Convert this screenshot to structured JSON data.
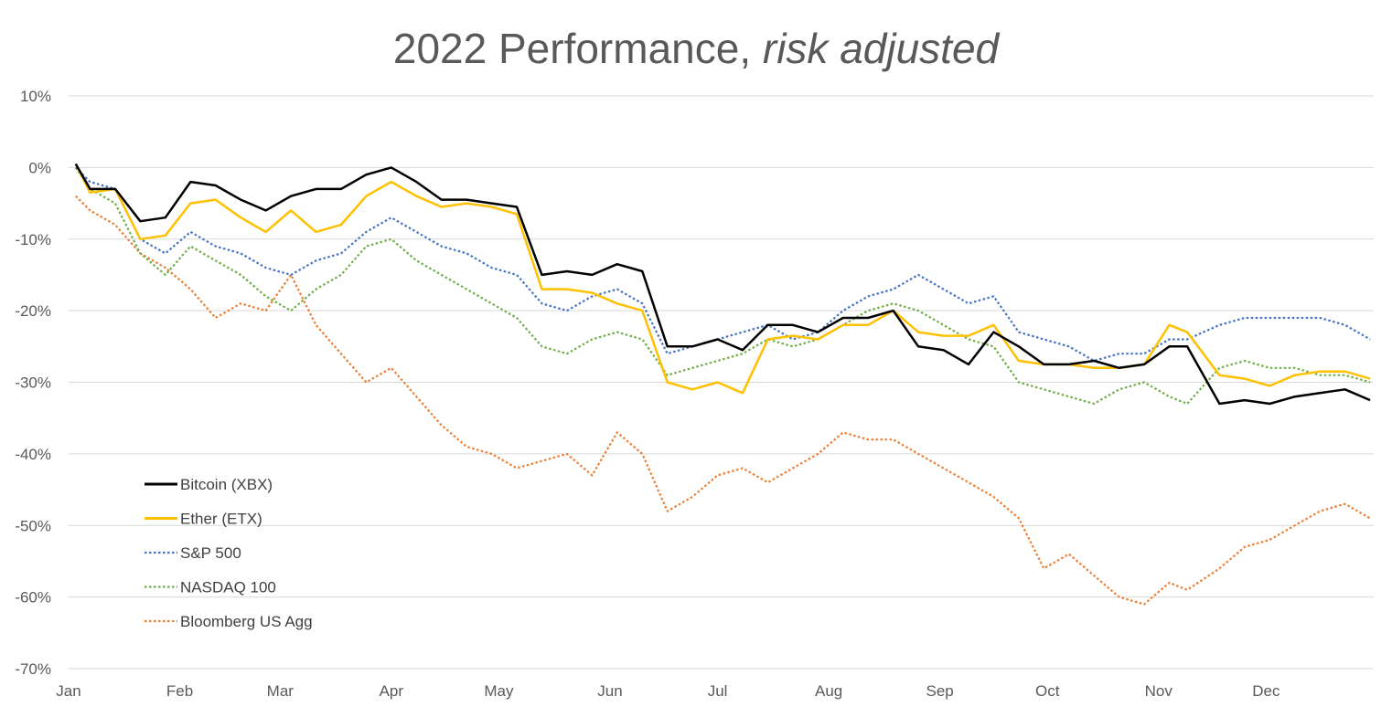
{
  "chart_data": {
    "type": "line",
    "title": "2022 Performance,",
    "title_italic": "risk adjusted",
    "xlabel": "",
    "ylabel": "",
    "ylim": [
      -70,
      10
    ],
    "y_ticks": [
      "10%",
      "0%",
      "-10%",
      "-20%",
      "-30%",
      "-40%",
      "-50%",
      "-60%",
      "-70%"
    ],
    "y_tick_values": [
      10,
      0,
      -10,
      -20,
      -30,
      -40,
      -50,
      -60,
      -70
    ],
    "x_ticks": [
      "Jan",
      "Feb",
      "Mar",
      "Apr",
      "May",
      "Jun",
      "Jul",
      "Aug",
      "Sep",
      "Oct",
      "Nov",
      "Dec"
    ],
    "grid": "horizontal",
    "legend_position": "bottom-left",
    "x": [
      "2022-01-03",
      "2022-01-07",
      "2022-01-14",
      "2022-01-21",
      "2022-01-28",
      "2022-02-04",
      "2022-02-11",
      "2022-02-18",
      "2022-02-25",
      "2022-03-04",
      "2022-03-11",
      "2022-03-18",
      "2022-03-25",
      "2022-04-01",
      "2022-04-08",
      "2022-04-15",
      "2022-04-22",
      "2022-04-29",
      "2022-05-06",
      "2022-05-13",
      "2022-05-20",
      "2022-05-27",
      "2022-06-03",
      "2022-06-10",
      "2022-06-17",
      "2022-06-24",
      "2022-07-01",
      "2022-07-08",
      "2022-07-15",
      "2022-07-22",
      "2022-07-29",
      "2022-08-05",
      "2022-08-12",
      "2022-08-19",
      "2022-08-26",
      "2022-09-02",
      "2022-09-09",
      "2022-09-16",
      "2022-09-23",
      "2022-09-30",
      "2022-10-07",
      "2022-10-14",
      "2022-10-21",
      "2022-10-28",
      "2022-11-04",
      "2022-11-09",
      "2022-11-18",
      "2022-11-25",
      "2022-12-02",
      "2022-12-09",
      "2022-12-16",
      "2022-12-23",
      "2022-12-30"
    ],
    "series": [
      {
        "name": "Bitcoin (XBX)",
        "color": "#000000",
        "dash": "solid",
        "values": [
          0.5,
          -3,
          -3,
          -7.5,
          -7,
          -2,
          -2.5,
          -4.5,
          -6,
          -4,
          -3,
          -3,
          -1,
          0,
          -2,
          -4.5,
          -4.5,
          -5,
          -5.5,
          -15,
          -14.5,
          -15,
          -13.5,
          -14.5,
          -25,
          -25,
          -24,
          -25.5,
          -22,
          -22,
          -23,
          -21,
          -21,
          -20,
          -25,
          -25.5,
          -27.5,
          -23,
          -25,
          -27.5,
          -27.5,
          -27,
          -28,
          -27.5,
          -25,
          -25,
          -33,
          -32.5,
          -33,
          -32,
          -31.5,
          -31,
          -32.5
        ]
      },
      {
        "name": "Ether (ETX)",
        "color": "#FFC000",
        "dash": "solid",
        "values": [
          0.5,
          -3.5,
          -3,
          -10,
          -9.5,
          -5,
          -4.5,
          -7,
          -9,
          -6,
          -9,
          -8,
          -4,
          -2,
          -4,
          -5.5,
          -5,
          -5.5,
          -6.5,
          -17,
          -17,
          -17.5,
          -19,
          -20,
          -30,
          -31,
          -30,
          -31.5,
          -24,
          -23.5,
          -24,
          -22,
          -22,
          -20,
          -23,
          -23.5,
          -23.5,
          -22,
          -27,
          -27.5,
          -27.5,
          -28,
          -28,
          -27.5,
          -22,
          -23,
          -29,
          -29.5,
          -30.5,
          -29,
          -28.5,
          -28.5,
          -29.5
        ]
      },
      {
        "name": "S&P 500",
        "color": "#4472C4",
        "dash": "dotted",
        "values": [
          0,
          -2,
          -3,
          -10,
          -12,
          -9,
          -11,
          -12,
          -14,
          -15,
          -13,
          -12,
          -9,
          -7,
          -9,
          -11,
          -12,
          -14,
          -15,
          -19,
          -20,
          -18,
          -17,
          -19,
          -26,
          -25,
          -24,
          -23,
          -22,
          -24,
          -23,
          -20,
          -18,
          -17,
          -15,
          -17,
          -19,
          -18,
          -23,
          -24,
          -25,
          -27,
          -26,
          -26,
          -24,
          -24,
          -22,
          -21,
          -21,
          -21,
          -21,
          -22,
          -24
        ]
      },
      {
        "name": "NASDAQ 100",
        "color": "#70AD47",
        "dash": "dotted",
        "values": [
          0,
          -3,
          -5,
          -12,
          -15,
          -11,
          -13,
          -15,
          -18,
          -20,
          -17,
          -15,
          -11,
          -10,
          -13,
          -15,
          -17,
          -19,
          -21,
          -25,
          -26,
          -24,
          -23,
          -24,
          -29,
          -28,
          -27,
          -26,
          -24,
          -25,
          -24,
          -22,
          -20,
          -19,
          -20,
          -22,
          -24,
          -25,
          -30,
          -31,
          -32,
          -33,
          -31,
          -30,
          -32,
          -33,
          -28,
          -27,
          -28,
          -28,
          -29,
          -29,
          -30
        ]
      },
      {
        "name": "Bloomberg US Agg",
        "color": "#ED7D31",
        "dash": "dotted",
        "values": [
          -4,
          -6,
          -8,
          -12,
          -14,
          -17,
          -21,
          -19,
          -20,
          -15,
          -22,
          -26,
          -30,
          -28,
          -32,
          -36,
          -39,
          -40,
          -42,
          -41,
          -40,
          -43,
          -37,
          -40,
          -48,
          -46,
          -43,
          -42,
          -44,
          -42,
          -40,
          -37,
          -38,
          -38,
          -40,
          -42,
          -44,
          -46,
          -49,
          -56,
          -54,
          -57,
          -60,
          -61,
          -58,
          -59,
          -56,
          -53,
          -52,
          -50,
          -48,
          -47,
          -49
        ]
      }
    ]
  }
}
